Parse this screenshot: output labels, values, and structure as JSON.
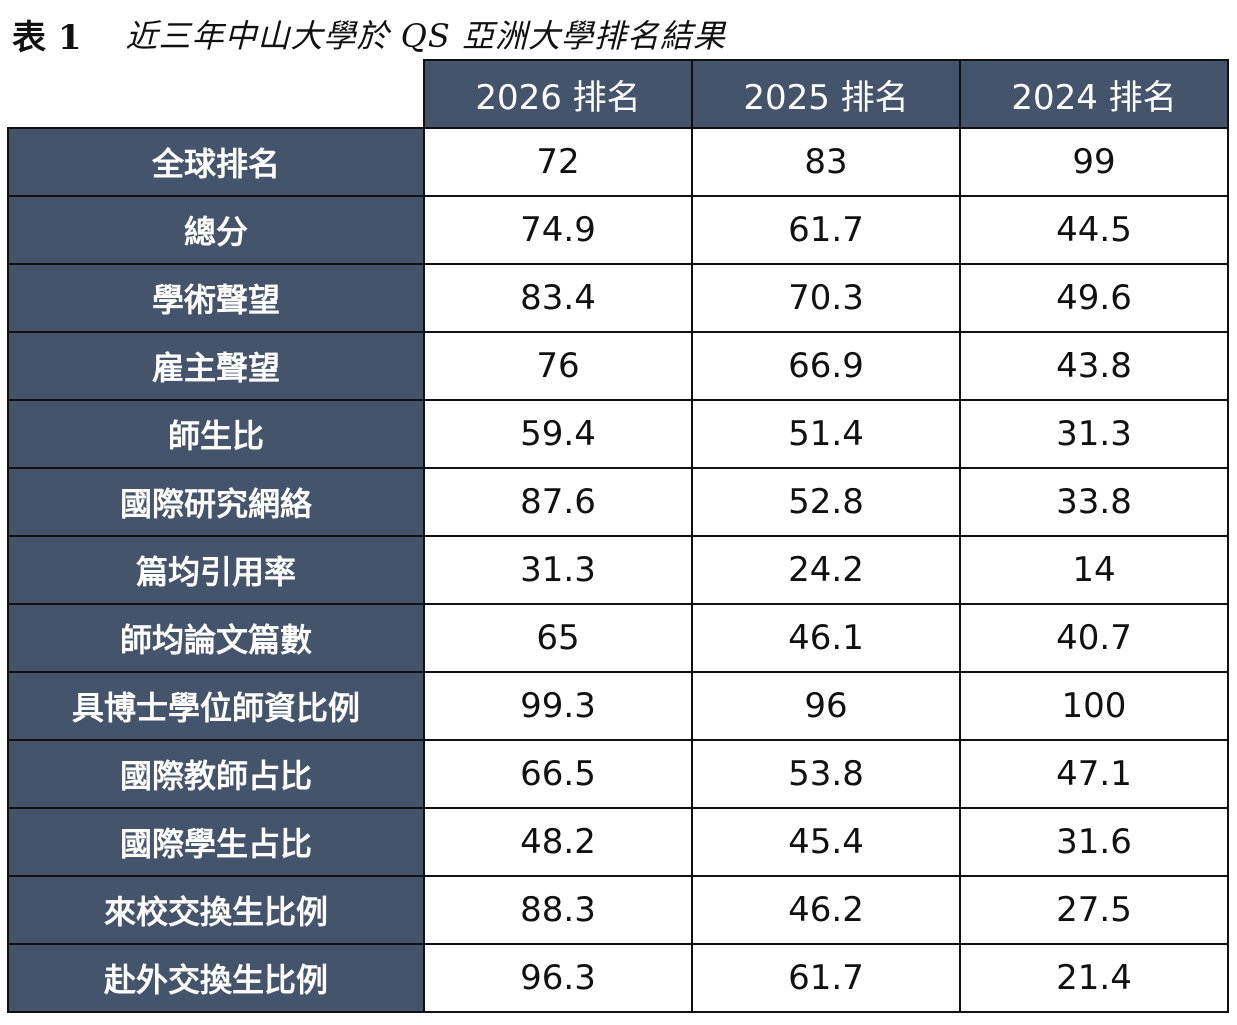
{
  "caption": {
    "label": "表 1",
    "title": "近三年中山大學於 QS 亞洲大學排名結果"
  },
  "table": {
    "headers": [
      "2026 排名",
      "2025 排名",
      "2024 排名"
    ],
    "rows": [
      {
        "label": "全球排名",
        "values": [
          "72",
          "83",
          "99"
        ]
      },
      {
        "label": "總分",
        "values": [
          "74.9",
          "61.7",
          "44.5"
        ]
      },
      {
        "label": "學術聲望",
        "values": [
          "83.4",
          "70.3",
          "49.6"
        ]
      },
      {
        "label": "雇主聲望",
        "values": [
          "76",
          "66.9",
          "43.8"
        ]
      },
      {
        "label": "師生比",
        "values": [
          "59.4",
          "51.4",
          "31.3"
        ]
      },
      {
        "label": "國際研究網絡",
        "values": [
          "87.6",
          "52.8",
          "33.8"
        ]
      },
      {
        "label": "篇均引用率",
        "values": [
          "31.3",
          "24.2",
          "14"
        ]
      },
      {
        "label": "師均論文篇數",
        "values": [
          "65",
          "46.1",
          "40.7"
        ]
      },
      {
        "label": "具博士學位師資比例",
        "values": [
          "99.3",
          "96",
          "100"
        ]
      },
      {
        "label": "國際教師占比",
        "values": [
          "66.5",
          "53.8",
          "47.1"
        ]
      },
      {
        "label": "國際學生占比",
        "values": [
          "48.2",
          "45.4",
          "31.6"
        ]
      },
      {
        "label": "來校交換生比例",
        "values": [
          "88.3",
          "46.2",
          "27.5"
        ]
      },
      {
        "label": "赴外交換生比例",
        "values": [
          "96.3",
          "61.7",
          "21.4"
        ]
      }
    ]
  },
  "colors": {
    "header_fill": "#44546a",
    "header_text": "#ffffff",
    "border": "#111111"
  }
}
